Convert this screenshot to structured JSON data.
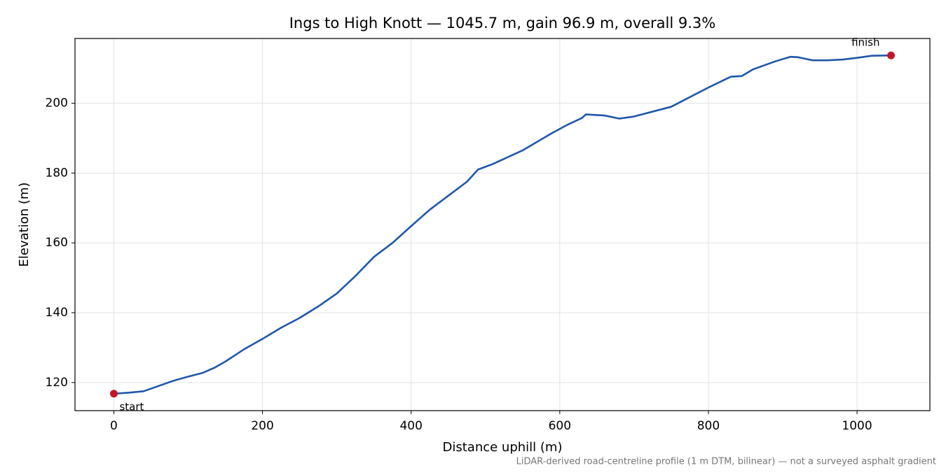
{
  "chart_data": {
    "type": "line",
    "title": "Ings to High Knott — 1045.7 m, gain 96.9 m, overall 9.3%",
    "xlabel": "Distance uphill (m)",
    "ylabel": "Elevation (m)",
    "footnote": "LiDAR-derived road-centreline profile (1 m DTM, bilinear) — not a surveyed asphalt gradient",
    "x": [
      0,
      20,
      40,
      60,
      80,
      100,
      120,
      135,
      150,
      175,
      200,
      225,
      250,
      275,
      300,
      325,
      350,
      375,
      400,
      425,
      450,
      475,
      490,
      510,
      550,
      590,
      610,
      630,
      635,
      660,
      680,
      700,
      750,
      800,
      830,
      845,
      860,
      890,
      910,
      920,
      940,
      960,
      980,
      1000,
      1020,
      1045.7
    ],
    "series": [
      {
        "name": "Elevation",
        "color": "#1f58a8",
        "values": [
          116.8,
          117.1,
          117.5,
          119.0,
          120.5,
          121.7,
          122.8,
          124.2,
          126.0,
          129.5,
          132.5,
          135.7,
          138.5,
          141.8,
          145.5,
          150.5,
          156.0,
          160.0,
          164.8,
          169.5,
          173.5,
          177.5,
          181.0,
          182.6,
          186.5,
          191.5,
          193.8,
          195.8,
          196.8,
          196.5,
          195.6,
          196.2,
          199.0,
          204.5,
          207.6,
          207.8,
          209.7,
          212.0,
          213.3,
          213.2,
          212.3,
          212.3,
          212.5,
          213.0,
          213.6,
          213.7
        ]
      }
    ],
    "endpoints": {
      "color": "#c0182a",
      "start": "start",
      "finish": "finish"
    },
    "xlim": [
      -52.3,
      1098.0
    ],
    "ylim": [
      111.95,
      218.55
    ],
    "xticks": [
      0,
      200,
      400,
      600,
      800,
      1000
    ],
    "yticks": [
      120,
      140,
      160,
      180,
      200
    ],
    "grid": true
  }
}
